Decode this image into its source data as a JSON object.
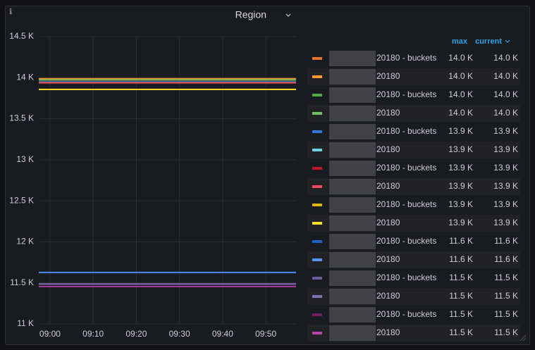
{
  "chart_data": {
    "type": "line",
    "title": "Region",
    "x": [
      537.4,
      597.0
    ],
    "xlim": [
      537.4,
      597.0
    ],
    "xticks": [
      {
        "value": 540,
        "label": "09:00"
      },
      {
        "value": 550,
        "label": "09:10"
      },
      {
        "value": 560,
        "label": "09:20"
      },
      {
        "value": 570,
        "label": "09:30"
      },
      {
        "value": 580,
        "label": "09:40"
      },
      {
        "value": 590,
        "label": "09:50"
      }
    ],
    "ylim": [
      11000,
      14500
    ],
    "yticks": [
      {
        "value": 11000,
        "label": "11 K"
      },
      {
        "value": 11500,
        "label": "11.5 K"
      },
      {
        "value": 12000,
        "label": "12 K"
      },
      {
        "value": 12500,
        "label": "12.5 K"
      },
      {
        "value": 13000,
        "label": "13 K"
      },
      {
        "value": 13500,
        "label": "13.5 K"
      },
      {
        "value": 14000,
        "label": "14 K"
      },
      {
        "value": 14500,
        "label": "14.5 K"
      }
    ],
    "grid": true,
    "legend_columns": [
      "max",
      "current"
    ],
    "series": [
      {
        "name": "20180 - buckets",
        "color": "#e0752d",
        "values": [
          13990,
          13990
        ],
        "max": {
          "value": 13990,
          "label": "14.0 K"
        },
        "current": {
          "value": 13990,
          "label": "14.0 K"
        }
      },
      {
        "name": "20180",
        "color": "#ff9830",
        "values": [
          13985,
          13985
        ],
        "max": {
          "value": 13985,
          "label": "14.0 K"
        },
        "current": {
          "value": 13985,
          "label": "14.0 K"
        }
      },
      {
        "name": "20180 - buckets",
        "color": "#56a64b",
        "values": [
          13975,
          13975
        ],
        "max": {
          "value": 13975,
          "label": "14.0 K"
        },
        "current": {
          "value": 13975,
          "label": "14.0 K"
        }
      },
      {
        "name": "20180",
        "color": "#73bf69",
        "values": [
          13970,
          13970
        ],
        "max": {
          "value": 13970,
          "label": "14.0 K"
        },
        "current": {
          "value": 13970,
          "label": "14.0 K"
        }
      },
      {
        "name": "20180 - buckets",
        "color": "#3274d9",
        "values": [
          13950,
          13950
        ],
        "max": {
          "value": 13950,
          "label": "13.9 K"
        },
        "current": {
          "value": 13950,
          "label": "13.9 K"
        }
      },
      {
        "name": "20180",
        "color": "#6ed0e0",
        "values": [
          13945,
          13945
        ],
        "max": {
          "value": 13945,
          "label": "13.9 K"
        },
        "current": {
          "value": 13945,
          "label": "13.9 K"
        }
      },
      {
        "name": "20180 - buckets",
        "color": "#c4162a",
        "values": [
          13940,
          13940
        ],
        "max": {
          "value": 13940,
          "label": "13.9 K"
        },
        "current": {
          "value": 13940,
          "label": "13.9 K"
        }
      },
      {
        "name": "20180",
        "color": "#f2495c",
        "values": [
          13935,
          13935
        ],
        "max": {
          "value": 13935,
          "label": "13.9 K"
        },
        "current": {
          "value": 13935,
          "label": "13.9 K"
        }
      },
      {
        "name": "20180 - buckets",
        "color": "#e0b400",
        "values": [
          13860,
          13860
        ],
        "max": {
          "value": 13860,
          "label": "13.9 K"
        },
        "current": {
          "value": 13860,
          "label": "13.9 K"
        }
      },
      {
        "name": "20180",
        "color": "#fade2a",
        "values": [
          13855,
          13855
        ],
        "max": {
          "value": 13855,
          "label": "13.9 K"
        },
        "current": {
          "value": 13855,
          "label": "13.9 K"
        }
      },
      {
        "name": "20180 - buckets",
        "color": "#1f60c4",
        "values": [
          11630,
          11630
        ],
        "max": {
          "value": 11630,
          "label": "11.6 K"
        },
        "current": {
          "value": 11630,
          "label": "11.6 K"
        }
      },
      {
        "name": "20180",
        "color": "#5794f2",
        "values": [
          11625,
          11625
        ],
        "max": {
          "value": 11625,
          "label": "11.6 K"
        },
        "current": {
          "value": 11625,
          "label": "11.6 K"
        }
      },
      {
        "name": "20180 - buckets",
        "color": "#705da0",
        "values": [
          11490,
          11490
        ],
        "max": {
          "value": 11490,
          "label": "11.5 K"
        },
        "current": {
          "value": 11490,
          "label": "11.5 K"
        }
      },
      {
        "name": "20180",
        "color": "#806eb7",
        "values": [
          11485,
          11485
        ],
        "max": {
          "value": 11485,
          "label": "11.5 K"
        },
        "current": {
          "value": 11485,
          "label": "11.5 K"
        }
      },
      {
        "name": "20180 - buckets",
        "color": "#6d1f62",
        "values": [
          11460,
          11460
        ],
        "max": {
          "value": 11460,
          "label": "11.5 K"
        },
        "current": {
          "value": 11460,
          "label": "11.5 K"
        }
      },
      {
        "name": "20180",
        "color": "#ba43a9",
        "values": [
          11455,
          11455
        ],
        "max": {
          "value": 11455,
          "label": "11.5 K"
        },
        "current": {
          "value": 11455,
          "label": "11.5 K"
        }
      }
    ]
  }
}
